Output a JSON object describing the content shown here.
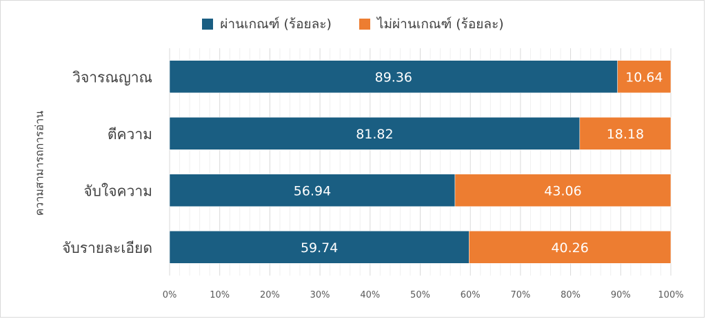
{
  "chart_data": {
    "type": "bar",
    "orientation": "horizontal",
    "stacked": true,
    "title": "",
    "xlabel": "",
    "ylabel": "ความสามารถการอ่าน",
    "xlim": [
      0,
      100
    ],
    "x_tick_labels": [
      "0%",
      "10%",
      "20%",
      "30%",
      "40%",
      "50%",
      "60%",
      "70%",
      "80%",
      "90%",
      "100%"
    ],
    "grid": true,
    "legend_position": "top",
    "categories": [
      "วิจารณญาณ",
      "ตีความ",
      "จับใจความ",
      "จับรายละเอียด"
    ],
    "series": [
      {
        "name": "ผ่านเกณฑ์ (ร้อยละ)",
        "color": "#1a5e82",
        "values": [
          89.36,
          81.82,
          56.94,
          59.74
        ],
        "labels": [
          "89.36",
          "81.82",
          "56.94",
          "59.74"
        ]
      },
      {
        "name": "ไม่ผ่านเกณฑ์ (ร้อยละ)",
        "color": "#ed7d31",
        "values": [
          10.64,
          18.18,
          43.06,
          40.26
        ],
        "labels": [
          "10.64",
          "18.18",
          "43.06",
          "40.26"
        ]
      }
    ]
  }
}
